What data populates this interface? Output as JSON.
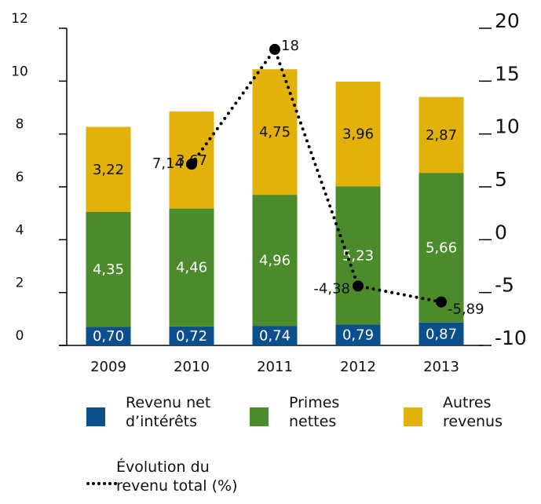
{
  "chart_data": {
    "type": "bar",
    "stacked": true,
    "categories": [
      "2009",
      "2010",
      "2011",
      "2012",
      "2013"
    ],
    "ylim": [
      0,
      12
    ],
    "yticks": [
      0,
      2,
      4,
      6,
      8,
      10,
      12
    ],
    "y2lim": [
      -10,
      20
    ],
    "y2ticks": [
      -10,
      -5,
      0,
      5,
      10,
      15,
      20
    ],
    "series": [
      {
        "name": "Revenu net d’intérêts",
        "color": "#0b4f8c",
        "values": [
          0.7,
          0.72,
          0.74,
          0.79,
          0.87
        ],
        "value_labels": [
          "0,70",
          "0,72",
          "0,74",
          "0,79",
          "0,87"
        ],
        "label_color": "#ffffff"
      },
      {
        "name": "Primes nettes",
        "color": "#4b8b2b",
        "values": [
          4.35,
          4.46,
          4.96,
          5.23,
          5.66
        ],
        "value_labels": [
          "4,35",
          "4,46",
          "4,96",
          "5,23",
          "5,66"
        ],
        "label_color": "#ffffff"
      },
      {
        "name": "Autres revenus",
        "color": "#e2b20a",
        "values": [
          3.22,
          3.67,
          4.75,
          3.96,
          2.87
        ],
        "value_labels": [
          "3,22",
          "3,67",
          "4,75",
          "3,96",
          "2,87"
        ],
        "label_color": "#111111"
      },
      {
        "name": "Évolution du revenu total (%)",
        "type": "line",
        "axis": "y2",
        "color": "#000000",
        "values": [
          null,
          7.14,
          18,
          -4.38,
          -5.89
        ],
        "value_labels": [
          null,
          "7,14",
          "18",
          "-4,38",
          "-5,89"
        ]
      }
    ]
  }
}
